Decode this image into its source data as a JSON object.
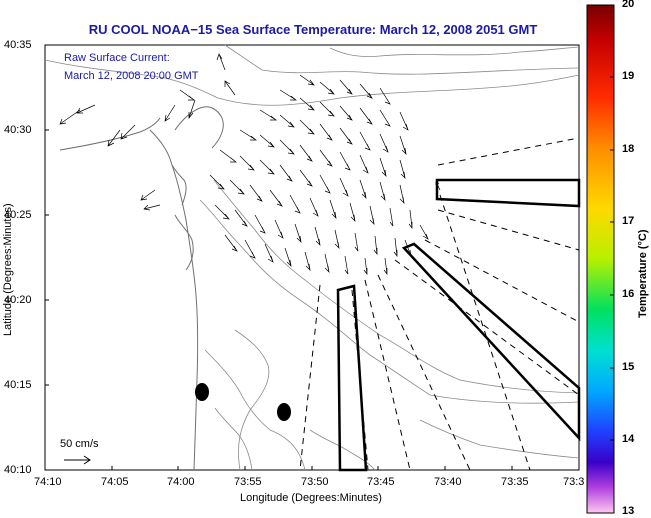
{
  "title": "RU COOL  NOAA−15  Sea Surface Temperature:  March 12, 2008 2051 GMT",
  "annotation": {
    "line1": "Raw Surface Current:",
    "line2": "March 12, 2008 20:00 GMT"
  },
  "scale_label": "50 cm/s",
  "xlabel": "Longitude (Degrees:Minutes)",
  "ylabel": "Latitude (Degrees:Minutes)",
  "colorbar": {
    "label": "Temperature (°C)",
    "ticks": [
      "20",
      "19",
      "18",
      "17",
      "16",
      "15",
      "14",
      "13"
    ],
    "range": [
      13,
      20
    ]
  },
  "x_ticks": [
    "74:10",
    "74:05",
    "74:00",
    "73:55",
    "73:50",
    "73:45",
    "73:40",
    "73:35",
    "73:3"
  ],
  "y_ticks": [
    "40:35",
    "40:30",
    "40:25",
    "40:20",
    "40:15",
    "40:10"
  ]
}
